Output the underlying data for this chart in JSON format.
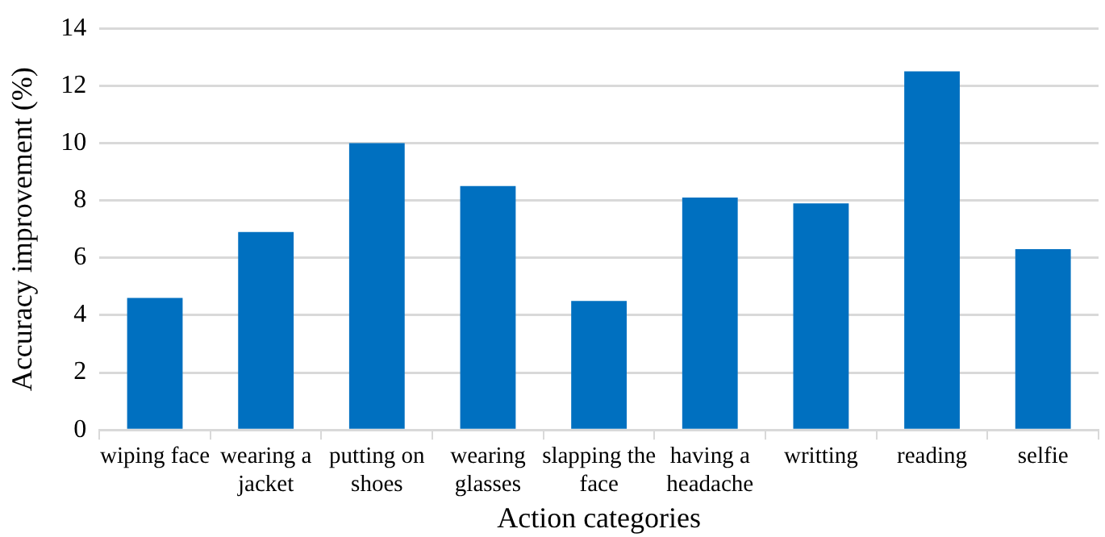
{
  "chart_data": {
    "type": "bar",
    "xlabel": "Action categories",
    "ylabel": "Accuracy improvement (%)",
    "categories": [
      "wiping face",
      "wearing a jacket",
      "putting on shoes",
      "wearing glasses",
      "slapping the face",
      "having a headache",
      "writting",
      "reading",
      "selfie"
    ],
    "values": [
      4.6,
      6.9,
      10.0,
      8.5,
      4.5,
      8.1,
      7.9,
      12.5,
      6.3
    ],
    "color": "#0070c0",
    "ylim": [
      0,
      14
    ],
    "yticks": [
      0,
      2,
      4,
      6,
      8,
      10,
      12,
      14
    ],
    "grid": "y",
    "legend": false
  }
}
